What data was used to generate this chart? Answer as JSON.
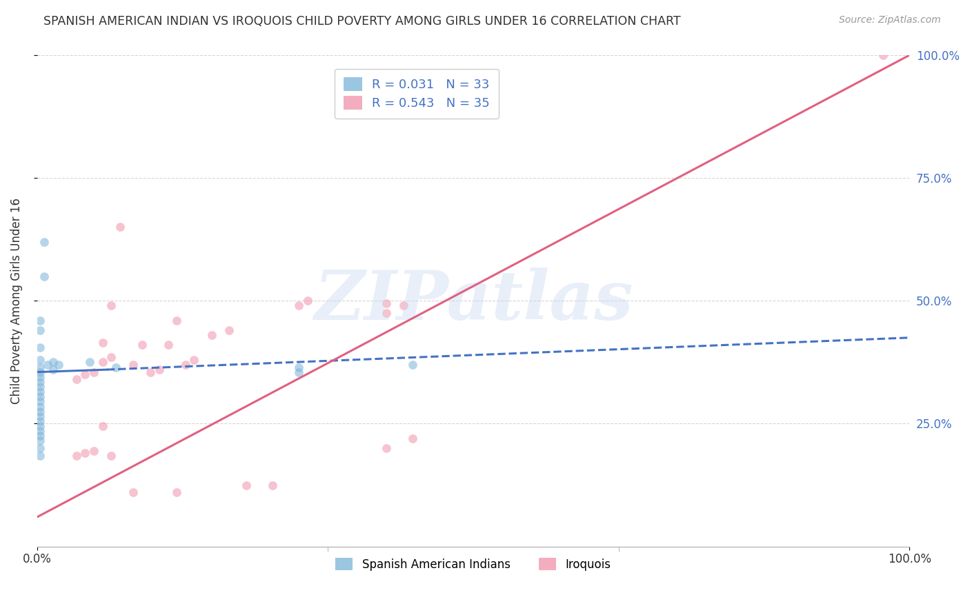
{
  "title": "SPANISH AMERICAN INDIAN VS IROQUOIS CHILD POVERTY AMONG GIRLS UNDER 16 CORRELATION CHART",
  "source": "Source: ZipAtlas.com",
  "ylabel": "Child Poverty Among Girls Under 16",
  "xlim": [
    0,
    1.0
  ],
  "ylim": [
    0,
    1.0
  ],
  "ytick_positions": [
    0.25,
    0.5,
    0.75,
    1.0
  ],
  "legend_r1": "R = 0.031   N = 33",
  "legend_r2": "R = 0.543   N = 35",
  "legend_label1": "Spanish American Indians",
  "legend_label2": "Iroquois",
  "blue_scatter": [
    [
      0.008,
      0.62
    ],
    [
      0.008,
      0.55
    ],
    [
      0.003,
      0.46
    ],
    [
      0.003,
      0.44
    ],
    [
      0.003,
      0.405
    ],
    [
      0.003,
      0.38
    ],
    [
      0.003,
      0.365
    ],
    [
      0.003,
      0.355
    ],
    [
      0.003,
      0.345
    ],
    [
      0.003,
      0.335
    ],
    [
      0.003,
      0.325
    ],
    [
      0.003,
      0.315
    ],
    [
      0.003,
      0.305
    ],
    [
      0.003,
      0.295
    ],
    [
      0.003,
      0.285
    ],
    [
      0.003,
      0.275
    ],
    [
      0.003,
      0.265
    ],
    [
      0.003,
      0.255
    ],
    [
      0.003,
      0.245
    ],
    [
      0.003,
      0.235
    ],
    [
      0.003,
      0.225
    ],
    [
      0.003,
      0.215
    ],
    [
      0.003,
      0.2
    ],
    [
      0.003,
      0.185
    ],
    [
      0.012,
      0.37
    ],
    [
      0.018,
      0.375
    ],
    [
      0.018,
      0.36
    ],
    [
      0.025,
      0.37
    ],
    [
      0.06,
      0.375
    ],
    [
      0.09,
      0.365
    ],
    [
      0.3,
      0.365
    ],
    [
      0.3,
      0.355
    ],
    [
      0.43,
      0.37
    ]
  ],
  "pink_scatter": [
    [
      0.045,
      0.185
    ],
    [
      0.055,
      0.19
    ],
    [
      0.065,
      0.195
    ],
    [
      0.075,
      0.245
    ],
    [
      0.075,
      0.375
    ],
    [
      0.075,
      0.415
    ],
    [
      0.085,
      0.49
    ],
    [
      0.085,
      0.385
    ],
    [
      0.095,
      0.65
    ],
    [
      0.11,
      0.37
    ],
    [
      0.12,
      0.41
    ],
    [
      0.13,
      0.355
    ],
    [
      0.14,
      0.36
    ],
    [
      0.15,
      0.41
    ],
    [
      0.16,
      0.46
    ],
    [
      0.17,
      0.37
    ],
    [
      0.18,
      0.38
    ],
    [
      0.2,
      0.43
    ],
    [
      0.22,
      0.44
    ],
    [
      0.3,
      0.49
    ],
    [
      0.31,
      0.5
    ],
    [
      0.4,
      0.475
    ],
    [
      0.4,
      0.495
    ],
    [
      0.42,
      0.49
    ],
    [
      0.97,
      1.0
    ],
    [
      0.11,
      0.11
    ],
    [
      0.16,
      0.11
    ],
    [
      0.24,
      0.125
    ],
    [
      0.27,
      0.125
    ],
    [
      0.4,
      0.2
    ],
    [
      0.43,
      0.22
    ],
    [
      0.045,
      0.34
    ],
    [
      0.055,
      0.35
    ],
    [
      0.065,
      0.355
    ],
    [
      0.085,
      0.185
    ]
  ],
  "blue_line_solid": [
    [
      0.0,
      0.355
    ],
    [
      0.08,
      0.36
    ]
  ],
  "blue_line_dash": [
    [
      0.08,
      0.36
    ],
    [
      1.0,
      0.425
    ]
  ],
  "pink_line": [
    [
      0.0,
      0.06
    ],
    [
      1.0,
      1.0
    ]
  ],
  "background_color": "#ffffff",
  "scatter_alpha": 0.55,
  "scatter_size": 85,
  "blue_color": "#7ab3d9",
  "pink_color": "#f092aa",
  "blue_line_color": "#4472c4",
  "pink_line_color": "#e06080",
  "grid_color": "#cccccc",
  "title_color": "#333333",
  "right_axis_tick_color": "#4472c4",
  "watermark_text": "ZIPatlas",
  "watermark_color": "#c8d8f0"
}
